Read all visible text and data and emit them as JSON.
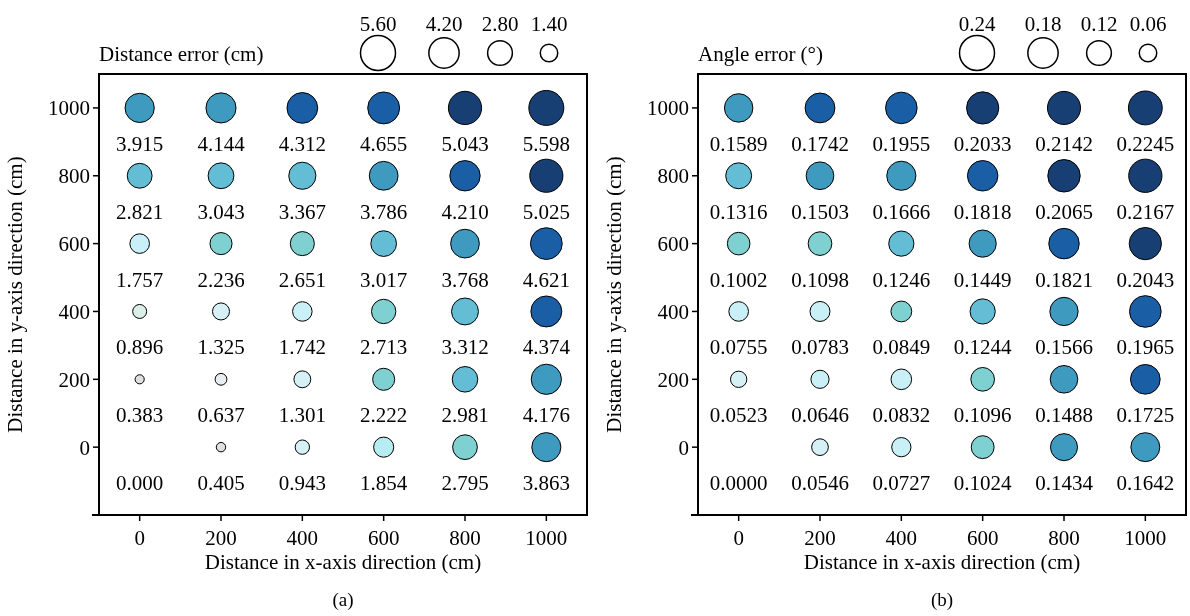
{
  "chart_data": [
    {
      "type": "bubble",
      "xlabel": "Distance in x-axis direction (cm)",
      "ylabel": "Distance in y-axis direction (cm)",
      "legend_title": "Distance error (cm)",
      "annotations": [
        "(a)",
        "0.000"
      ],
      "xlim": [
        -100,
        1100
      ],
      "ylim": [
        -200,
        1100
      ],
      "xticks": [
        0,
        200,
        400,
        600,
        800,
        1000
      ],
      "yticks": [
        0,
        200,
        400,
        600,
        800,
        1000
      ],
      "size_legend": [
        {
          "value": 5.6,
          "label": "5.60"
        },
        {
          "value": 4.2,
          "label": "4.20"
        },
        {
          "value": 2.8,
          "label": "2.80"
        },
        {
          "value": 1.4,
          "label": "1.40"
        }
      ],
      "series": [
        {
          "x": [
            0,
            200,
            400,
            600,
            800,
            1000,
            0,
            200,
            400,
            600,
            800,
            1000,
            0,
            200,
            400,
            600,
            800,
            1000,
            0,
            200,
            400,
            600,
            800,
            1000,
            0,
            200,
            400,
            600,
            800,
            1000,
            200,
            400,
            600,
            800,
            1000
          ],
          "values": [
            1000,
            1000,
            1000,
            1000,
            1000,
            1000,
            800,
            800,
            800,
            800,
            800,
            800,
            600,
            600,
            600,
            600,
            600,
            600,
            400,
            400,
            400,
            400,
            400,
            400,
            200,
            200,
            200,
            200,
            200,
            200,
            0,
            0,
            0,
            0,
            0
          ],
          "sizes": [
            3.915,
            4.144,
            4.312,
            4.655,
            5.043,
            5.598,
            2.821,
            3.043,
            3.367,
            3.786,
            4.21,
            5.025,
            1.757,
            2.236,
            2.651,
            3.017,
            3.768,
            4.621,
            0.896,
            1.325,
            1.742,
            2.713,
            3.312,
            4.374,
            0.383,
            0.637,
            1.301,
            2.222,
            2.981,
            4.176,
            0.405,
            0.943,
            1.854,
            2.795,
            3.863
          ],
          "value_labels": [
            "3.915",
            "4.144",
            "4.312",
            "4.655",
            "5.043",
            "5.598",
            "2.821",
            "3.043",
            "3.367",
            "3.786",
            "4.210",
            "5.025",
            "1.757",
            "2.236",
            "2.651",
            "3.017",
            "3.768",
            "4.621",
            "0.896",
            "1.325",
            "1.742",
            "2.713",
            "3.312",
            "4.374",
            "0.383",
            "0.637",
            "1.301",
            "2.222",
            "2.981",
            "4.176",
            "0.405",
            "0.943",
            "1.854",
            "2.795",
            "3.863"
          ],
          "colors": [
            "#3f9abf",
            "#3f9abf",
            "#1a5fa5",
            "#1a5fa5",
            "#173f73",
            "#173f73",
            "#62bdd5",
            "#62bdd5",
            "#62bdd5",
            "#3f9abf",
            "#1a5fa5",
            "#173f73",
            "#c9f0f7",
            "#7fd0d0",
            "#7fd0d0",
            "#62bdd5",
            "#3f9abf",
            "#1a5fa5",
            "#d9efe8",
            "#d6f1f5",
            "#c9f0f7",
            "#7fd0d0",
            "#62bdd5",
            "#1a5fa5",
            "#e0e0e0",
            "#e8eef0",
            "#d6f1f5",
            "#7fd0d0",
            "#62bdd5",
            "#3f9abf",
            "#e0e0e0",
            "#d6f1f5",
            "#b8ecf3",
            "#7fd0d0",
            "#3f9abf"
          ]
        }
      ]
    },
    {
      "type": "bubble",
      "xlabel": "Distance in x-axis direction (cm)",
      "ylabel": "Distance in y-axis direction (cm)",
      "legend_title": "Angle error (°)",
      "annotations": [
        "(b)",
        "0.0000"
      ],
      "xlim": [
        -100,
        1100
      ],
      "ylim": [
        -200,
        1100
      ],
      "xticks": [
        0,
        200,
        400,
        600,
        800,
        1000
      ],
      "yticks": [
        0,
        200,
        400,
        600,
        800,
        1000
      ],
      "size_legend": [
        {
          "value": 0.24,
          "label": "0.24"
        },
        {
          "value": 0.18,
          "label": "0.18"
        },
        {
          "value": 0.12,
          "label": "0.12"
        },
        {
          "value": 0.06,
          "label": "0.06"
        }
      ],
      "series": [
        {
          "x": [
            0,
            200,
            400,
            600,
            800,
            1000,
            0,
            200,
            400,
            600,
            800,
            1000,
            0,
            200,
            400,
            600,
            800,
            1000,
            0,
            200,
            400,
            600,
            800,
            1000,
            0,
            200,
            400,
            600,
            800,
            1000,
            200,
            400,
            600,
            800,
            1000
          ],
          "values": [
            1000,
            1000,
            1000,
            1000,
            1000,
            1000,
            800,
            800,
            800,
            800,
            800,
            800,
            600,
            600,
            600,
            600,
            600,
            600,
            400,
            400,
            400,
            400,
            400,
            400,
            200,
            200,
            200,
            200,
            200,
            200,
            0,
            0,
            0,
            0,
            0
          ],
          "sizes": [
            0.1589,
            0.1742,
            0.1955,
            0.2033,
            0.2142,
            0.2245,
            0.1316,
            0.1503,
            0.1666,
            0.1818,
            0.2065,
            0.2167,
            0.1002,
            0.1098,
            0.1246,
            0.1449,
            0.1821,
            0.2043,
            0.0755,
            0.0783,
            0.0849,
            0.1244,
            0.1566,
            0.1965,
            0.0523,
            0.0646,
            0.0832,
            0.1096,
            0.1488,
            0.1725,
            0.0546,
            0.0727,
            0.1024,
            0.1434,
            0.1642
          ],
          "value_labels": [
            "0.1589",
            "0.1742",
            "0.1955",
            "0.2033",
            "0.2142",
            "0.2245",
            "0.1316",
            "0.1503",
            "0.1666",
            "0.1818",
            "0.2065",
            "0.2167",
            "0.1002",
            "0.1098",
            "0.1246",
            "0.1449",
            "0.1821",
            "0.2043",
            "0.0755",
            "0.0783",
            "0.0849",
            "0.1244",
            "0.1566",
            "0.1965",
            "0.0523",
            "0.0646",
            "0.0832",
            "0.1096",
            "0.1488",
            "0.1725",
            "0.0546",
            "0.0727",
            "0.1024",
            "0.1434",
            "0.1642"
          ],
          "colors": [
            "#3f9abf",
            "#1a5fa5",
            "#1a5fa5",
            "#173f73",
            "#173f73",
            "#173f73",
            "#62bdd5",
            "#3f9abf",
            "#3f9abf",
            "#1a5fa5",
            "#173f73",
            "#173f73",
            "#7fd0d0",
            "#7fd0d0",
            "#62bdd5",
            "#3f9abf",
            "#1a5fa5",
            "#173f73",
            "#c9f0f7",
            "#c9f0f7",
            "#7fd0d0",
            "#62bdd5",
            "#3f9abf",
            "#1a5fa5",
            "#d6f1f5",
            "#c9f0f7",
            "#c9f0f7",
            "#7fd0d0",
            "#3f9abf",
            "#1a5fa5",
            "#d6f1f5",
            "#c9f0f7",
            "#7fd0d0",
            "#3f9abf",
            "#3f9abf"
          ]
        }
      ]
    }
  ]
}
